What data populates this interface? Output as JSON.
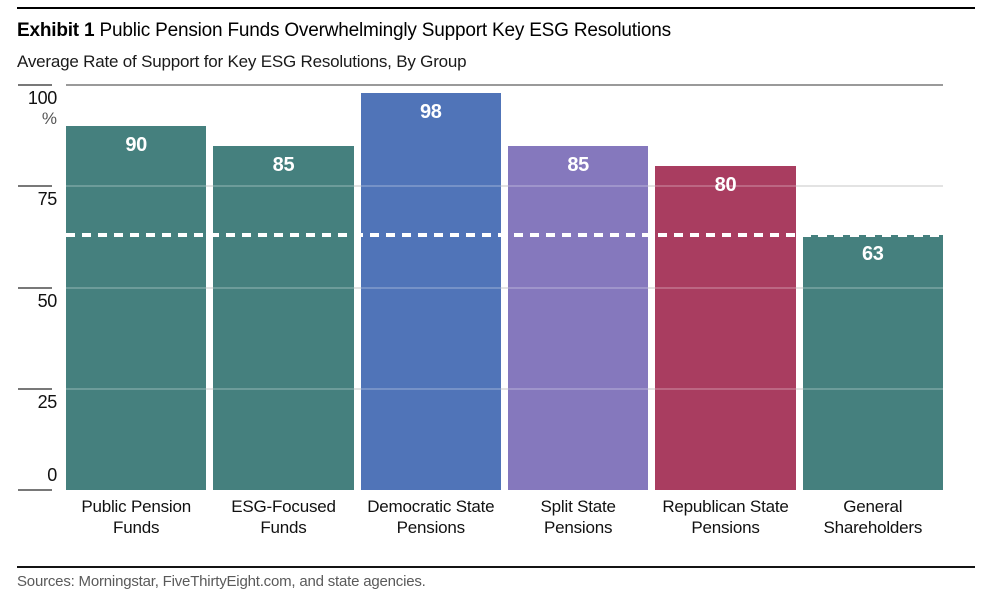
{
  "header": {
    "exhibit_label": "Exhibit 1",
    "title": "Public Pension Funds Overwhelmingly Support Key ESG Resolutions",
    "subtitle": "Average Rate of Support for Key ESG Resolutions, By Group"
  },
  "chart_data": {
    "type": "bar",
    "title": "Public Pension Funds Overwhelmingly Support Key ESG Resolutions",
    "subtitle": "Average Rate of Support for Key ESG Resolutions, By Group",
    "unit": "%",
    "ylim": [
      0,
      100
    ],
    "y_ticks": [
      100,
      75,
      50,
      25,
      0
    ],
    "y_axis_unit_label": "%",
    "gridlines": [
      75,
      50,
      25
    ],
    "grid": "on",
    "legend_position": "none",
    "categories": [
      "Public Pension Funds",
      "ESG-Focused Funds",
      "Democratic State Pensions",
      "Split State Pensions",
      "Republican State Pensions",
      "General Shareholders"
    ],
    "category_lines": [
      [
        "Public Pension",
        "Funds"
      ],
      [
        "ESG-Focused",
        "Funds"
      ],
      [
        "Democratic State",
        "Pensions"
      ],
      [
        "Split State",
        "Pensions"
      ],
      [
        "Republican State",
        "Pensions"
      ],
      [
        "General",
        "Shareholders"
      ]
    ],
    "values": [
      90,
      85,
      98,
      85,
      80,
      63
    ],
    "bar_colors": [
      "#45807E",
      "#45807E",
      "#5074B8",
      "#8578BD",
      "#A93D60",
      "#45807E"
    ],
    "value_label_color": "#FFFFFF",
    "reference_line": {
      "value": 63,
      "style": "dashed",
      "color": "#FFFFFF"
    }
  },
  "footer": {
    "sources": "Sources: Morningstar, FiveThirtyEight.com, and state agencies."
  },
  "colors": {
    "teal": "#45807E",
    "blue": "#5074B8",
    "purple": "#8578BD",
    "maroon": "#A93D60",
    "top_rule": "#000000",
    "axis_top_line": "#9A9A9A",
    "gridline": "#DCDCDC",
    "text": "#111111",
    "muted_text": "#5A5A5A"
  }
}
